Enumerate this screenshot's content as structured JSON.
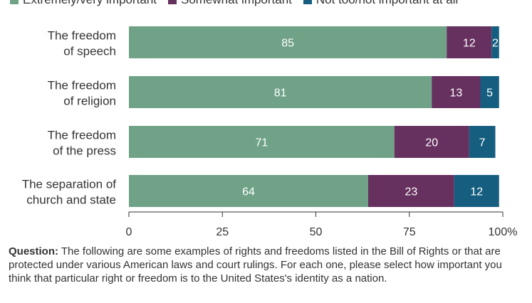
{
  "chart_data": {
    "type": "bar",
    "orientation": "horizontal",
    "stacked": true,
    "categories": [
      [
        "The freedom",
        "of speech"
      ],
      [
        "The freedom",
        "of religion"
      ],
      [
        "The freedom",
        "of the press"
      ],
      [
        "The separation of",
        "church and state"
      ]
    ],
    "series": [
      {
        "name": "Extremely/very important",
        "color": "#6fa287",
        "values": [
          85,
          81,
          71,
          64
        ]
      },
      {
        "name": "Somewhat important",
        "color": "#66305f",
        "values": [
          12,
          13,
          20,
          23
        ]
      },
      {
        "name": "Not too/not important at all",
        "color": "#155e7f",
        "values": [
          2,
          5,
          7,
          12
        ]
      }
    ],
    "xlim": [
      0,
      100
    ],
    "xticks": [
      "0",
      "25",
      "50",
      "75",
      "100%"
    ],
    "legend_position": "top",
    "grid": false
  },
  "note": {
    "label": "Question:",
    "text": " The following are some examples of rights and freedoms listed in the Bill of Rights or that are protected under various American laws and court rulings. For each one, please select how important you think that particular right or freedom is to the United States's identity as a nation."
  }
}
